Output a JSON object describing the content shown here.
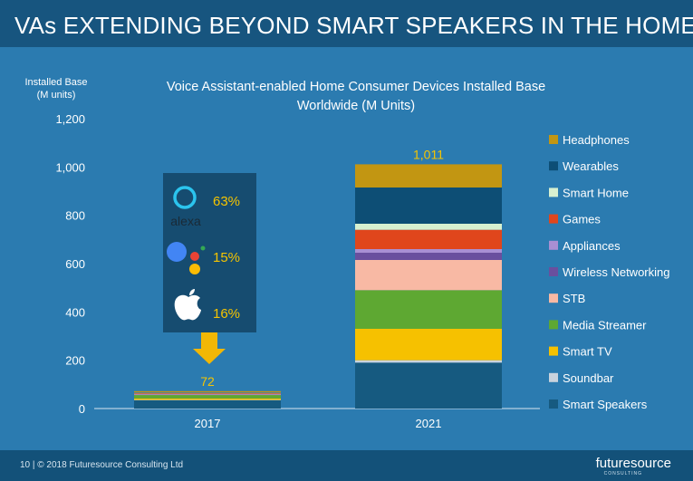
{
  "slide": {
    "title": "VAs EXTENDING BEYOND SMART SPEAKERS IN THE HOME",
    "footer": "10  |  © 2018 Futuresource Consulting Ltd",
    "logo": "futuresource",
    "logo_sub": "CONSULTING"
  },
  "colors": {
    "background": "#2b7bb0",
    "header": "#17557f",
    "callout_box": "#164c70",
    "arrow": "#f2b705",
    "accent_text": "#f5c400"
  },
  "callout": {
    "items": [
      {
        "brand": "alexa",
        "icon": "alexa-ring-icon",
        "value": "63%"
      },
      {
        "brand": "Google Assistant",
        "icon": "google-assistant-dots-icon",
        "value": "15%"
      },
      {
        "brand": "Apple",
        "icon": "apple-icon",
        "value": "16%"
      }
    ],
    "arrow_icon": "down-arrow-icon"
  },
  "chart_data": {
    "type": "bar",
    "stacked": true,
    "title": "Voice Assistant-enabled Home Consumer Devices Installed Base Worldwide (M Units)",
    "ylabel": "Installed Base (M units)",
    "ylim": [
      0,
      1200
    ],
    "yticks": [
      "0",
      "200",
      "400",
      "600",
      "800",
      "1,000",
      "1,200"
    ],
    "categories": [
      "2017",
      "2021"
    ],
    "totals": [
      "72",
      "1,011"
    ],
    "legend_position": "right",
    "series": [
      {
        "name": "Smart Speakers",
        "color": "#165a80",
        "values": [
          35,
          190
        ]
      },
      {
        "name": "Soundbar",
        "color": "#c9d3dd",
        "values": [
          1,
          10
        ]
      },
      {
        "name": "Smart TV",
        "color": "#f6c100",
        "values": [
          6,
          130
        ]
      },
      {
        "name": "Media Streamer",
        "color": "#5ea832",
        "values": [
          14,
          160
        ]
      },
      {
        "name": "STB",
        "color": "#f8b9a4",
        "values": [
          2,
          125
        ]
      },
      {
        "name": "Wireless Networking",
        "color": "#6a4f9e",
        "values": [
          1,
          30
        ]
      },
      {
        "name": "Appliances",
        "color": "#a98fd3",
        "values": [
          1,
          15
        ]
      },
      {
        "name": "Games",
        "color": "#e0461c",
        "values": [
          3,
          80
        ]
      },
      {
        "name": "Smart Home",
        "color": "#d7f0d0",
        "values": [
          2,
          25
        ]
      },
      {
        "name": "Wearables",
        "color": "#0d4e75",
        "values": [
          2,
          150
        ]
      },
      {
        "name": "Headphones",
        "color": "#c29612",
        "values": [
          5,
          96
        ]
      }
    ]
  }
}
